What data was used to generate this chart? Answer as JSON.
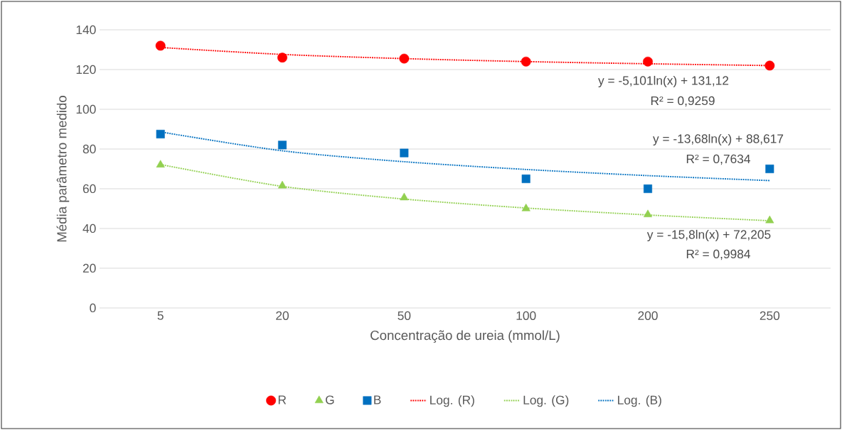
{
  "chart_data": {
    "type": "scatter",
    "xlabel": "Concentração de ureia (mmol/L)",
    "ylabel": "Média parâmetro medido",
    "categories": [
      "5",
      "20",
      "50",
      "100",
      "200",
      "250"
    ],
    "series": [
      {
        "name": "R",
        "marker": "circle",
        "color": "#ff0000",
        "values": [
          132,
          126,
          125.5,
          124,
          124,
          122
        ]
      },
      {
        "name": "G",
        "marker": "triangle",
        "color": "#92d050",
        "values": [
          72,
          61.5,
          55.5,
          50,
          47,
          44
        ]
      },
      {
        "name": "B",
        "marker": "square",
        "color": "#0070c0",
        "values": [
          87.5,
          82,
          78,
          65,
          60,
          70
        ]
      },
      {
        "name": "Log. (R)",
        "type": "line",
        "line_style": "dotted",
        "color": "#ff0000",
        "values": [
          131.1,
          127.6,
          125.5,
          124.0,
          122.9,
          122.0
        ]
      },
      {
        "name": "Log. (G)",
        "type": "line",
        "line_style": "dotted",
        "color": "#92d050",
        "values": [
          72.2,
          61.2,
          54.8,
          50.3,
          46.8,
          43.9
        ]
      },
      {
        "name": "Log. (B)",
        "type": "line",
        "line_style": "dotted",
        "color": "#0070c0",
        "values": [
          88.6,
          79.1,
          73.6,
          69.7,
          66.6,
          64.1
        ]
      }
    ],
    "ylim": [
      0,
      140
    ],
    "yticks": [
      0,
      20,
      40,
      60,
      80,
      100,
      120,
      140
    ],
    "grid": "y",
    "legend": "bottom",
    "annotations": [
      "y = -5,101ln(x) + 131,12",
      "R² = 0,9259",
      "y = -13,68ln(x) + 88,617",
      "R² = 0,7634",
      "y = -15,8ln(x) + 72,205",
      "R² = 0,9984"
    ]
  }
}
